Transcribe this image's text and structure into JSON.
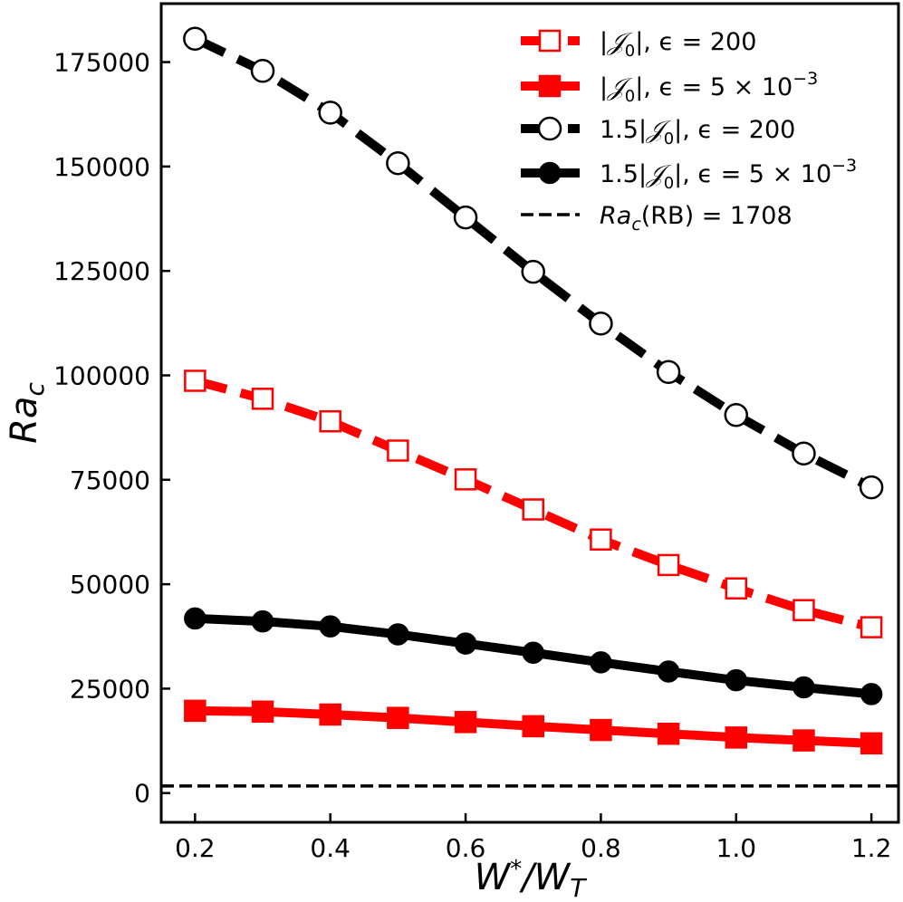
{
  "chart_data": {
    "type": "line",
    "title": "",
    "xlabel": "W*/W_T",
    "ylabel": "Ra_c",
    "xlim": [
      0.15,
      1.24
    ],
    "ylim": [
      -7000,
      189000
    ],
    "x": [
      0.2,
      0.3,
      0.4,
      0.5,
      0.6,
      0.7,
      0.8,
      0.9,
      1.0,
      1.1,
      1.2
    ],
    "xticks": [
      0.2,
      0.4,
      0.6,
      0.8,
      1.0,
      1.2
    ],
    "xtick_labels": [
      "0.2",
      "0.4",
      "0.6",
      "0.8",
      "1.0",
      "1.2"
    ],
    "yticks": [
      0,
      25000,
      50000,
      75000,
      100000,
      125000,
      150000,
      175000
    ],
    "ytick_labels": [
      "0",
      "25000",
      "50000",
      "75000",
      "100000",
      "125000",
      "150000",
      "175000"
    ],
    "legend_position": "top-right",
    "series": [
      {
        "name": "|J0|, eps = 200",
        "label_pre": "|",
        "label_sym": "𝒥",
        "label_sub": "0",
        "label_post": "|, ϵ = 200",
        "label_sup": "",
        "color": "#ff0000",
        "style": "dashed",
        "marker": "square-open",
        "values": [
          98700,
          94400,
          89000,
          82000,
          75100,
          67900,
          60700,
          54600,
          49000,
          43800,
          39700
        ]
      },
      {
        "name": "|J0|, eps = 5e-3",
        "label_pre": "|",
        "label_sym": "𝒥",
        "label_sub": "0",
        "label_post": "|, ϵ = 5 × 10",
        "label_sup": "−3",
        "color": "#ff0000",
        "style": "solid",
        "marker": "square-filled",
        "values": [
          19700,
          19500,
          18800,
          18000,
          17000,
          16000,
          15100,
          14200,
          13300,
          12600,
          11900
        ]
      },
      {
        "name": "1.5|J0|, eps = 200",
        "label_pre": "1.5|",
        "label_sym": "𝒥",
        "label_sub": "0",
        "label_post": "|, ϵ = 200",
        "label_sup": "",
        "color": "#000000",
        "style": "dashed",
        "marker": "circle-open",
        "values": [
          180600,
          172900,
          162900,
          150800,
          137800,
          124800,
          112400,
          100800,
          90500,
          81300,
          73200
        ]
      },
      {
        "name": "1.5|J0|, eps = 5e-3",
        "label_pre": "1.5|",
        "label_sym": "𝒥",
        "label_sub": "0",
        "label_post": "|, ϵ = 5 × 10",
        "label_sup": "−3",
        "color": "#000000",
        "style": "solid",
        "marker": "circle-filled",
        "values": [
          41800,
          41100,
          39900,
          38000,
          35800,
          33600,
          31300,
          29100,
          27000,
          25300,
          23700
        ]
      }
    ],
    "reference_line": {
      "name": "Ra_c(RB) = 1708",
      "label_main": "Ra",
      "label_sub": "c",
      "label_post": "(RB) = 1708",
      "value": 1708,
      "color": "#000000",
      "style": "dashed"
    }
  }
}
